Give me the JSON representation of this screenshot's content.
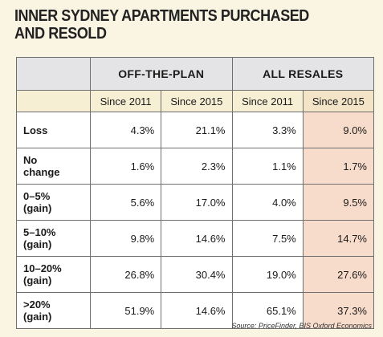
{
  "title": {
    "line1": "INNER SYDNEY APARTMENTS PURCHASED",
    "line2": "AND RESOLD"
  },
  "table": {
    "groups": [
      "OFF-THE-PLAN",
      "ALL RESALES"
    ],
    "subheaders": [
      "Since 2011",
      "Since 2015",
      "Since 2011",
      "Since 2015"
    ],
    "rows": [
      {
        "label": [
          "Loss"
        ],
        "values": [
          "4.3%",
          "21.1%",
          "3.3%",
          "9.0%"
        ]
      },
      {
        "label": [
          "No",
          "change"
        ],
        "values": [
          "1.6%",
          "2.3%",
          "1.1%",
          "1.7%"
        ]
      },
      {
        "label": [
          "0–5%",
          "(gain)"
        ],
        "values": [
          "5.6%",
          "17.0%",
          "4.0%",
          "9.5%"
        ]
      },
      {
        "label": [
          "5–10%",
          "(gain)"
        ],
        "values": [
          "9.8%",
          "14.6%",
          "7.5%",
          "14.7%"
        ]
      },
      {
        "label": [
          "10–20%",
          "(gain)"
        ],
        "values": [
          "26.8%",
          "30.4%",
          "19.0%",
          "27.6%"
        ]
      },
      {
        "label": [
          ">20%",
          "(gain)"
        ],
        "values": [
          "51.9%",
          "14.6%",
          "65.1%",
          "37.3%"
        ]
      }
    ]
  },
  "source": "Source: PriceFinder, BIS Oxford Economics"
}
